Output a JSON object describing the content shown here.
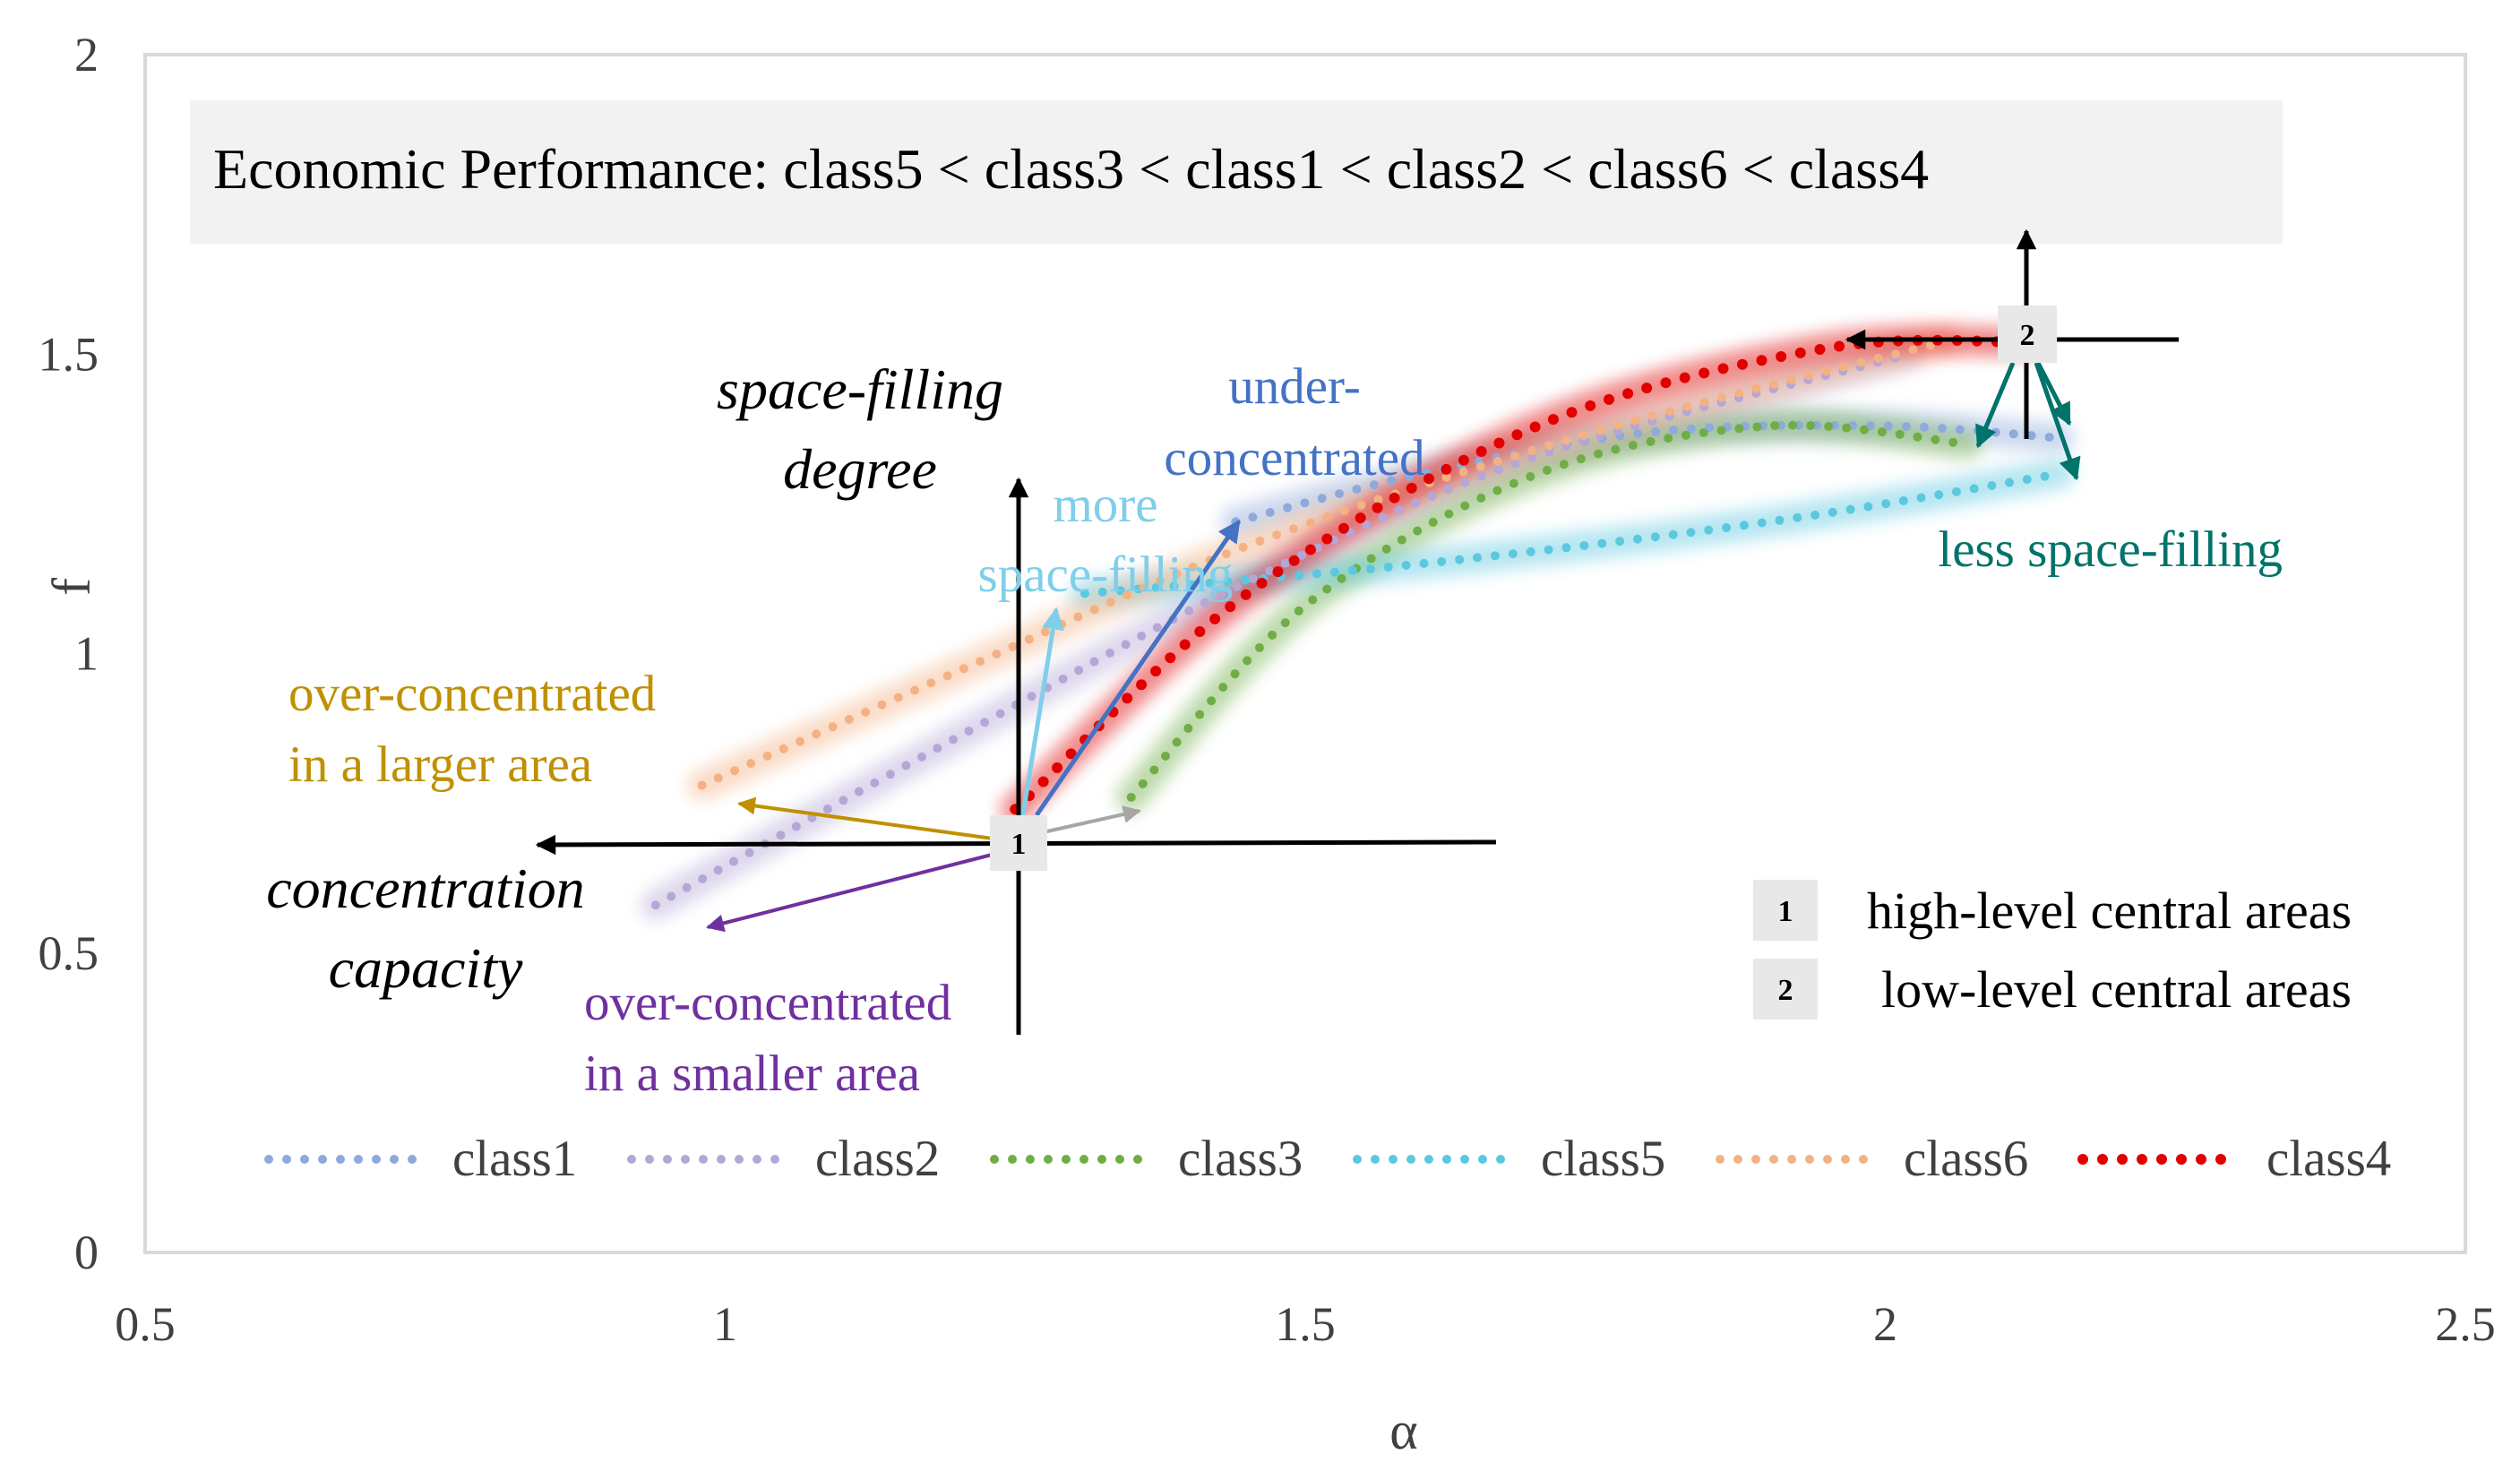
{
  "chart_data": {
    "type": "scatter",
    "title": "",
    "xlabel": "α",
    "ylabel": "f",
    "xlim": [
      0.5,
      2.5
    ],
    "ylim": [
      0,
      2
    ],
    "xticks": [
      "0.5",
      "1",
      "1.5",
      "2",
      "2.5"
    ],
    "yticks": [
      "0",
      "0.5",
      "1",
      "1.5",
      "2"
    ],
    "grid": false,
    "legend_position": "bottom",
    "banner": "Economic Performance:  class5 < class3 < class1 < class2 < class6 < class4",
    "series": [
      {
        "name": "class1",
        "color": "#8EAADB",
        "x": [
          1.44,
          1.6,
          1.8,
          2.0,
          2.15
        ],
        "y": [
          1.22,
          1.3,
          1.37,
          1.38,
          1.36
        ]
      },
      {
        "name": "class2",
        "color": "#B4A7D6",
        "x": [
          0.94,
          1.2,
          1.45,
          1.7,
          2.02
        ],
        "y": [
          0.58,
          0.86,
          1.12,
          1.33,
          1.5
        ]
      },
      {
        "name": "class3",
        "color": "#70AD47",
        "x": [
          1.35,
          1.5,
          1.7,
          1.9,
          2.07
        ],
        "y": [
          0.76,
          1.08,
          1.3,
          1.38,
          1.35
        ]
      },
      {
        "name": "class5",
        "color": "#5BC8E0",
        "x": [
          1.31,
          1.6,
          1.9,
          2.15
        ],
        "y": [
          1.1,
          1.15,
          1.22,
          1.3
        ]
      },
      {
        "name": "class6",
        "color": "#F4B183",
        "x": [
          0.98,
          1.2,
          1.45,
          1.75,
          2.05
        ],
        "y": [
          0.78,
          0.97,
          1.18,
          1.37,
          1.52
        ]
      },
      {
        "name": "class4",
        "color": "#E00000",
        "x": [
          1.25,
          1.45,
          1.7,
          1.95,
          2.12
        ],
        "y": [
          0.74,
          1.1,
          1.38,
          1.51,
          1.52
        ]
      }
    ],
    "annotations": {
      "space_filling_1": "space-filling",
      "space_filling_2": "degree",
      "concentration_1": "concentration",
      "concentration_2": "capacity",
      "under_1": "under-",
      "under_2": "concentrated",
      "more_1": "more",
      "more_2": "space-filling",
      "over_larger_1": "over-concentrated",
      "over_larger_2": "in a larger area",
      "over_smaller_1": "over-concentrated",
      "over_smaller_2": "in a smaller area",
      "less_space": "less space-filling",
      "marker1": "1",
      "marker2": "2"
    },
    "key": [
      {
        "marker": "1",
        "label": "high-level central areas"
      },
      {
        "marker": "2",
        "label": "low-level central areas"
      }
    ],
    "colors": {
      "under": "#4472C4",
      "more": "#7FCFEA",
      "over_larger": "#BF9000",
      "over_smaller": "#7030A0",
      "less_space": "#00736A",
      "gray_arrow": "#A6A6A6"
    }
  }
}
